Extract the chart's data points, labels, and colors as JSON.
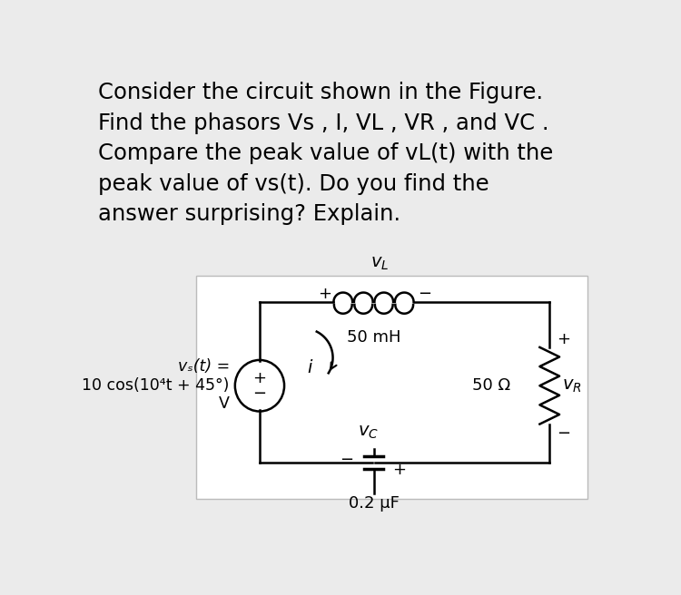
{
  "bg_color": "#ebebeb",
  "circuit_bg": "#ffffff",
  "text_color": "#000000",
  "title_text": "Consider the circuit shown in the Figure.\nFind the phasors Vs , I, VL , VR , and VC .\nCompare the peak value of vL(t) with the\npeak value of vs(t). Do you find the\nanswer surprising? Explain.",
  "title_fontsize": 17.5,
  "inductor_label": "50 mH",
  "resistor_label": "50 Ω",
  "capacitor_label": "0.2 μF",
  "source_label_1": "vₛ(t) =",
  "source_label_2": "10 cos(10⁴t + 45°)",
  "source_label_3": "V",
  "current_label": "i"
}
